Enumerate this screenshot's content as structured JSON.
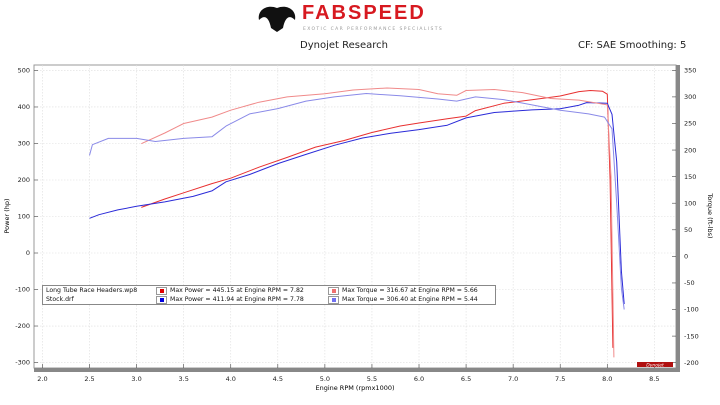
{
  "header": {
    "brand": "FABSPEED",
    "tagline": "EXOTIC CAR PERFORMANCE SPECIALISTS",
    "title": "Dynojet Research",
    "settings": "CF: SAE Smoothing: 5",
    "watermark": "Dynojet"
  },
  "chart_data": {
    "type": "line",
    "title": "Dynojet Research",
    "xlabel": "Engine RPM (rpmx1000)",
    "ylabel": "Power (hp)",
    "y2label": "Torque (ft-lbs)",
    "xlim": [
      1.91,
      8.73
    ],
    "ylim": [
      -315,
      515
    ],
    "y2lim": [
      -210,
      360
    ],
    "xticks": [
      "2.0",
      "2.5",
      "3.0",
      "3.5",
      "4.0",
      "4.5",
      "5.0",
      "5.5",
      "6.0",
      "6.5",
      "7.0",
      "7.5",
      "8.0",
      "8.5"
    ],
    "yticks": [
      "500",
      "400",
      "300",
      "200",
      "100",
      "0",
      "-100",
      "-200",
      "-300"
    ],
    "y2ticks": [
      "350",
      "300",
      "250",
      "200",
      "150",
      "100",
      "50",
      "0",
      "-50",
      "-100",
      "-150",
      "-200"
    ],
    "grid": true,
    "legend_position": "bottom-left",
    "series": [
      {
        "name": "Long Tube Race Headers.wp8",
        "metric": "Power",
        "axis": "left",
        "color": "#e83030",
        "points": [
          [
            3.05,
            125
          ],
          [
            3.3,
            148
          ],
          [
            3.5,
            165
          ],
          [
            3.8,
            190
          ],
          [
            4.0,
            205
          ],
          [
            4.3,
            235
          ],
          [
            4.6,
            262
          ],
          [
            4.9,
            290
          ],
          [
            5.2,
            308
          ],
          [
            5.5,
            330
          ],
          [
            5.8,
            348
          ],
          [
            6.0,
            356
          ],
          [
            6.3,
            368
          ],
          [
            6.5,
            375
          ],
          [
            6.6,
            390
          ],
          [
            6.9,
            410
          ],
          [
            7.2,
            420
          ],
          [
            7.5,
            430
          ],
          [
            7.7,
            442
          ],
          [
            7.82,
            445.15
          ],
          [
            7.95,
            443
          ],
          [
            8.0,
            435
          ],
          [
            8.03,
            200
          ],
          [
            8.06,
            -260
          ]
        ]
      },
      {
        "name": "Stock.drf",
        "metric": "Power",
        "axis": "left",
        "color": "#2a2ad8",
        "points": [
          [
            2.5,
            95
          ],
          [
            2.6,
            105
          ],
          [
            2.8,
            118
          ],
          [
            3.0,
            128
          ],
          [
            3.3,
            140
          ],
          [
            3.6,
            155
          ],
          [
            3.8,
            170
          ],
          [
            3.95,
            195
          ],
          [
            4.2,
            215
          ],
          [
            4.5,
            245
          ],
          [
            4.8,
            270
          ],
          [
            5.1,
            295
          ],
          [
            5.4,
            315
          ],
          [
            5.7,
            328
          ],
          [
            6.0,
            338
          ],
          [
            6.3,
            350
          ],
          [
            6.5,
            370
          ],
          [
            6.8,
            385
          ],
          [
            7.2,
            392
          ],
          [
            7.5,
            395
          ],
          [
            7.7,
            405
          ],
          [
            7.78,
            411.94
          ],
          [
            8.0,
            410
          ],
          [
            8.05,
            380
          ],
          [
            8.1,
            250
          ],
          [
            8.15,
            -50
          ],
          [
            8.18,
            -140
          ]
        ]
      },
      {
        "name": "Long Tube Race Headers.wp8",
        "metric": "Torque",
        "axis": "right",
        "color": "#f08a8a",
        "points": [
          [
            3.05,
            212
          ],
          [
            3.3,
            232
          ],
          [
            3.5,
            250
          ],
          [
            3.8,
            262
          ],
          [
            4.0,
            275
          ],
          [
            4.3,
            290
          ],
          [
            4.6,
            300
          ],
          [
            5.0,
            306
          ],
          [
            5.3,
            313
          ],
          [
            5.66,
            316.67
          ],
          [
            6.0,
            314
          ],
          [
            6.2,
            306
          ],
          [
            6.4,
            303
          ],
          [
            6.5,
            312
          ],
          [
            6.8,
            314
          ],
          [
            7.1,
            308
          ],
          [
            7.4,
            297
          ],
          [
            7.7,
            294
          ],
          [
            8.0,
            285
          ],
          [
            8.04,
            150
          ],
          [
            8.07,
            -190
          ]
        ]
      },
      {
        "name": "Stock.drf",
        "metric": "Torque",
        "axis": "right",
        "color": "#8a8ae8",
        "points": [
          [
            2.5,
            190
          ],
          [
            2.53,
            210
          ],
          [
            2.7,
            222
          ],
          [
            3.0,
            222
          ],
          [
            3.2,
            216
          ],
          [
            3.5,
            222
          ],
          [
            3.8,
            225
          ],
          [
            3.95,
            245
          ],
          [
            4.2,
            268
          ],
          [
            4.5,
            278
          ],
          [
            4.8,
            292
          ],
          [
            5.1,
            300
          ],
          [
            5.44,
            306.4
          ],
          [
            5.8,
            302
          ],
          [
            6.2,
            296
          ],
          [
            6.4,
            292
          ],
          [
            6.6,
            300
          ],
          [
            6.9,
            295
          ],
          [
            7.2,
            285
          ],
          [
            7.5,
            275
          ],
          [
            7.8,
            268
          ],
          [
            7.97,
            262
          ],
          [
            8.05,
            240
          ],
          [
            8.1,
            100
          ],
          [
            8.15,
            -60
          ],
          [
            8.18,
            -100
          ]
        ]
      }
    ],
    "legend": [
      {
        "run": "Long Tube Race Headers.wp8",
        "power": "Max Power = 445.15 at Engine RPM = 7.82",
        "torque": "Max Torque = 316.67 at Engine RPM = 5.66",
        "power_color": "#e00000",
        "torque_color": "#f07070"
      },
      {
        "run": "Stock.drf",
        "power": "Max Power = 411.94 at Engine RPM = 7.78",
        "torque": "Max Torque = 306.40 at Engine RPM = 5.44",
        "power_color": "#0000e0",
        "torque_color": "#7070f0"
      }
    ]
  }
}
